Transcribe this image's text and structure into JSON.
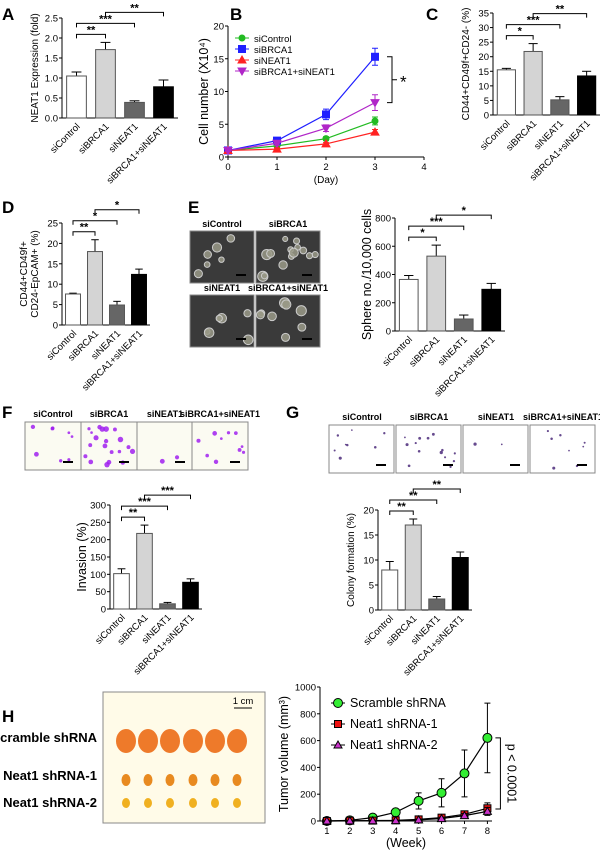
{
  "panel_letters": [
    "A",
    "B",
    "C",
    "D",
    "E",
    "F",
    "G",
    "H"
  ],
  "image_labels": {
    "E": [
      "siControl",
      "siBRCA1",
      "siNEAT1",
      "siBRCA1+siNEAT1"
    ],
    "F": [
      "siControl",
      "siBRCA1",
      "siNEAT1",
      "siBRCA1+siNEAT1"
    ],
    "G": [
      "siControl",
      "siBRCA1",
      "siNEAT1",
      "siBRCA1+siNEAT1"
    ],
    "H": [
      "Scramble shRNA",
      "Neat1 shRNA-1",
      "Neat1 shRNA-2"
    ],
    "H_scale": "1 cm"
  },
  "colors": {
    "bars": [
      "#ffffff",
      "#d4d4d4",
      "#666666",
      "#000000"
    ],
    "siControl": "#22bb22",
    "siBRCA1": "#1f1fff",
    "siNEAT1": "#ff2222",
    "combo": "#b026c8",
    "scramble": "#33ee33",
    "sh1": "#ee1111",
    "sh2": "#cc33cc"
  },
  "chart_data": [
    {
      "panel": "A",
      "type": "bar",
      "categories": [
        "siControl",
        "siBRCA1",
        "siNEAT1",
        "siBRCA1+siNEAT1"
      ],
      "values": [
        1.05,
        1.71,
        0.39,
        0.78
      ],
      "errors": [
        0.1,
        0.18,
        0.04,
        0.17
      ],
      "ylabel": "NEAT1 Expression (fold)",
      "ylim": [
        0,
        2.5
      ],
      "yticks": [
        "0.0",
        "0.5",
        "1.0",
        "1.5",
        "2.0",
        "2.5"
      ],
      "tickvals": [
        0,
        0.5,
        1,
        1.5,
        2,
        2.5
      ],
      "significance": [
        {
          "a": 0,
          "b": 1,
          "label": "**"
        },
        {
          "a": 0,
          "b": 2,
          "label": "***"
        },
        {
          "a": 1,
          "b": 3,
          "label": "**"
        }
      ]
    },
    {
      "panel": "B",
      "type": "line",
      "x": [
        0,
        1,
        2,
        3
      ],
      "xlim": [
        0,
        4
      ],
      "xticks": [
        "0",
        "1",
        "2",
        "3",
        "4"
      ],
      "xtickvals": [
        0,
        1,
        2,
        3,
        4
      ],
      "ylim": [
        0,
        20
      ],
      "yticks": [
        "0",
        "5",
        "10",
        "15",
        "20"
      ],
      "tickvals": [
        0,
        5,
        10,
        15,
        20
      ],
      "ylabel": "Cell number (X10⁴)",
      "xlabel": "(Day)",
      "annotation": "*",
      "series": [
        {
          "name": "siControl",
          "marker": "circle",
          "color": "#22bb22",
          "values": [
            1,
            1.7,
            2.8,
            5.5
          ],
          "errors": [
            0.2,
            0.3,
            0.3,
            0.6
          ]
        },
        {
          "name": "siBRCA1",
          "marker": "square",
          "color": "#1f1fff",
          "values": [
            1,
            2.5,
            6.5,
            15.3
          ],
          "errors": [
            0.2,
            0.3,
            0.8,
            1.3
          ]
        },
        {
          "name": "siNEAT1",
          "marker": "triangle-up",
          "color": "#ff2222",
          "values": [
            1,
            1.2,
            2,
            3.8
          ],
          "errors": [
            0.1,
            0.2,
            0.2,
            0.4
          ]
        },
        {
          "name": "siBRCA1+siNEAT1",
          "marker": "triangle-down",
          "color": "#b026c8",
          "values": [
            1,
            2.1,
            4.4,
            8.3
          ],
          "errors": [
            0.1,
            0.3,
            0.5,
            1.2
          ]
        }
      ]
    },
    {
      "panel": "C",
      "type": "bar",
      "categories": [
        "siControl",
        "siBRCA1",
        "siNEAT1",
        "siBRCA1+siNEAT1"
      ],
      "values": [
        15.5,
        21.8,
        5.2,
        13.4
      ],
      "errors": [
        0.5,
        2.7,
        1.1,
        1.6
      ],
      "ylabel": "CD44+CD49f+CD24- (%)",
      "ylim": [
        0,
        35
      ],
      "yticks": [
        "0",
        "5",
        "10",
        "15",
        "20",
        "25",
        "30",
        "35"
      ],
      "tickvals": [
        0,
        5,
        10,
        15,
        20,
        25,
        30,
        35
      ],
      "significance": [
        {
          "a": 0,
          "b": 1,
          "label": "*"
        },
        {
          "a": 0,
          "b": 2,
          "label": "***"
        },
        {
          "a": 1,
          "b": 3,
          "label": "**"
        }
      ]
    },
    {
      "panel": "D",
      "type": "bar",
      "categories": [
        "siControl",
        "siBRCA1",
        "siNEAT1",
        "siBRCA1+siNEAT1"
      ],
      "values": [
        7.6,
        18,
        4.9,
        12.4
      ],
      "errors": [
        0.2,
        2.9,
        0.9,
        1.3
      ],
      "ylabel": "CD44+CD49f+",
      "ylabel2": "CD24-EpCAM+ (%)",
      "ylim": [
        0,
        25
      ],
      "yticks": [
        "0",
        "5",
        "10",
        "15",
        "20",
        "25"
      ],
      "tickvals": [
        0,
        5,
        10,
        15,
        20,
        25
      ],
      "significance": [
        {
          "a": 0,
          "b": 1,
          "label": "**"
        },
        {
          "a": 0,
          "b": 2,
          "label": "*"
        },
        {
          "a": 1,
          "b": 3,
          "label": "*"
        }
      ]
    },
    {
      "panel": "E",
      "type": "bar",
      "categories": [
        "siControl",
        "siBRCA1",
        "siNEAT1",
        "siBRCA1+siNEAT1"
      ],
      "values": [
        365,
        530,
        85,
        295
      ],
      "errors": [
        28,
        78,
        28,
        42
      ],
      "ylabel": "Sphere no./10,000 cells",
      "ylim": [
        0,
        800
      ],
      "yticks": [
        "0",
        "200",
        "400",
        "600",
        "800"
      ],
      "tickvals": [
        0,
        200,
        400,
        600,
        800
      ],
      "significance": [
        {
          "a": 0,
          "b": 1,
          "label": "*"
        },
        {
          "a": 0,
          "b": 2,
          "label": "***"
        },
        {
          "a": 1,
          "b": 3,
          "label": "*"
        }
      ]
    },
    {
      "panel": "F",
      "type": "bar",
      "categories": [
        "siControl",
        "siBRCA1",
        "siNEAT1",
        "siBRCA1+siNEAT1"
      ],
      "values": [
        102,
        218,
        15,
        77
      ],
      "errors": [
        14,
        24,
        4,
        10
      ],
      "ylabel": "Invasion (%)",
      "ylim": [
        0,
        300
      ],
      "yticks": [
        "0",
        "50",
        "100",
        "150",
        "200",
        "250",
        "300"
      ],
      "tickvals": [
        0,
        50,
        100,
        150,
        200,
        250,
        300
      ],
      "significance": [
        {
          "a": 0,
          "b": 1,
          "label": "**"
        },
        {
          "a": 0,
          "b": 2,
          "label": "***"
        },
        {
          "a": 1,
          "b": 3,
          "label": "***"
        }
      ]
    },
    {
      "panel": "G",
      "type": "bar",
      "categories": [
        "siControl",
        "siBRCA1",
        "siNEAT1",
        "siBRCA1+siNEAT1"
      ],
      "values": [
        8,
        17,
        2.2,
        10.5
      ],
      "errors": [
        1.7,
        1.2,
        0.5,
        1.1
      ],
      "ylabel": "Colony formation (%)",
      "ylim": [
        0,
        20
      ],
      "yticks": [
        "0",
        "5",
        "10",
        "15",
        "20"
      ],
      "tickvals": [
        0,
        5,
        10,
        15,
        20
      ],
      "significance": [
        {
          "a": 0,
          "b": 1,
          "label": "**"
        },
        {
          "a": 0,
          "b": 2,
          "label": "**"
        },
        {
          "a": 1,
          "b": 3,
          "label": "**"
        }
      ]
    },
    {
      "panel": "H",
      "type": "line",
      "x": [
        1,
        2,
        3,
        4,
        5,
        6,
        7,
        8
      ],
      "xlim": [
        0.7,
        8.2
      ],
      "xticks": [
        "1",
        "2",
        "3",
        "4",
        "5",
        "6",
        "7",
        "8"
      ],
      "xtickvals": [
        1,
        2,
        3,
        4,
        5,
        6,
        7,
        8
      ],
      "ylim": [
        0,
        1000
      ],
      "yticks": [
        "0",
        "200",
        "400",
        "600",
        "800",
        "1000"
      ],
      "tickvals": [
        0,
        200,
        400,
        600,
        800,
        1000
      ],
      "ylabel": "Tumor volume (mm³)",
      "xlabel": "(Week)",
      "annotation": "p < 0.0001",
      "series": [
        {
          "name": "Scramble shRNA",
          "marker": "circle",
          "color": "#33ee33",
          "values": [
            0,
            5,
            25,
            65,
            150,
            210,
            355,
            620
          ],
          "errors": [
            2,
            5,
            10,
            25,
            60,
            105,
            175,
            260
          ]
        },
        {
          "name": "Neat1 shRNA-1",
          "marker": "square",
          "color": "#ee1111",
          "values": [
            0,
            2,
            3,
            5,
            12,
            25,
            50,
            95
          ],
          "errors": [
            1,
            2,
            3,
            4,
            8,
            12,
            20,
            40
          ]
        },
        {
          "name": "Neat1 shRNA-2",
          "marker": "triangle-up",
          "color": "#cc33cc",
          "values": [
            0,
            1,
            2,
            3,
            8,
            18,
            40,
            72
          ],
          "errors": [
            1,
            1,
            2,
            3,
            6,
            10,
            15,
            30
          ]
        }
      ]
    }
  ]
}
